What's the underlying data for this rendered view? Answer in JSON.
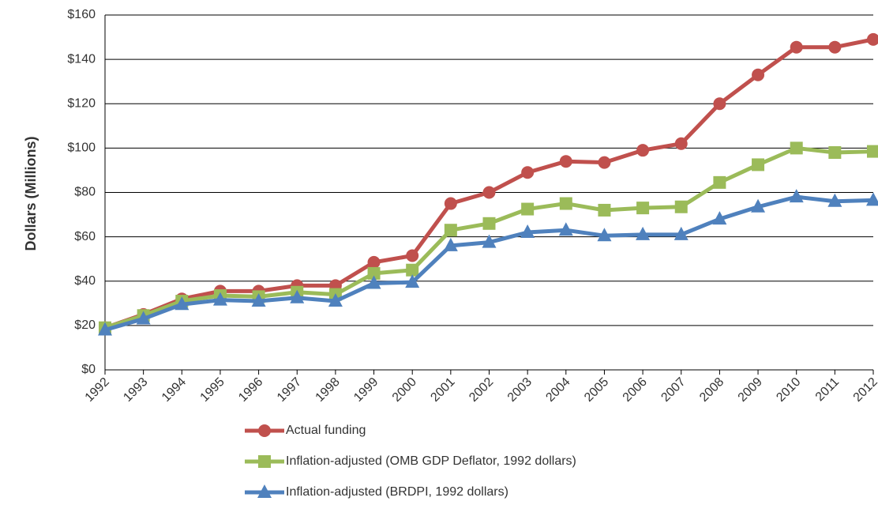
{
  "chart_data": {
    "type": "line",
    "y_label": "Dollars (Millions)",
    "categories": [
      "1992",
      "1993",
      "1994",
      "1995",
      "1996",
      "1997",
      "1998",
      "1999",
      "2000",
      "2001",
      "2002",
      "2003",
      "2004",
      "2005",
      "2006",
      "2007",
      "2008",
      "2009",
      "2010",
      "2011",
      "2012"
    ],
    "series": [
      {
        "name": "Actual funding",
        "color": "#c0504d",
        "marker": "circle",
        "values": [
          19,
          25,
          32,
          35.5,
          35.5,
          38,
          38,
          48.5,
          51.5,
          75,
          80,
          89,
          94,
          93.5,
          99,
          102,
          120,
          133,
          145.5,
          145.5,
          149
        ]
      },
      {
        "name": "Inflation-adjusted (OMB GDP Deflator, 1992 dollars)",
        "color": "#9bbb59",
        "marker": "square",
        "values": [
          19,
          24.5,
          31,
          33.5,
          33,
          35,
          34,
          43.5,
          45,
          63,
          66,
          72.5,
          75,
          72,
          73,
          73.5,
          84.5,
          92.5,
          100,
          98,
          98.5
        ]
      },
      {
        "name": "Inflation-adjusted (BRDPI, 1992 dollars)",
        "color": "#4f81bd",
        "marker": "triangle",
        "values": [
          18,
          23,
          29.5,
          31.5,
          31,
          32.5,
          31,
          39,
          39.5,
          56,
          57.5,
          62,
          63,
          60.5,
          61,
          61,
          68,
          73.5,
          78,
          76,
          76.5
        ]
      }
    ],
    "ylim": [
      0,
      160
    ],
    "yticks": [
      {
        "value": 0,
        "label": "$0"
      },
      {
        "value": 20,
        "label": "$20"
      },
      {
        "value": 40,
        "label": "$40"
      },
      {
        "value": 60,
        "label": "$60"
      },
      {
        "value": 80,
        "label": "$80"
      },
      {
        "value": 100,
        "label": "$100"
      },
      {
        "value": 120,
        "label": "$120"
      },
      {
        "value": 140,
        "label": "$140"
      },
      {
        "value": 160,
        "label": "$160"
      }
    ],
    "grid": true
  }
}
